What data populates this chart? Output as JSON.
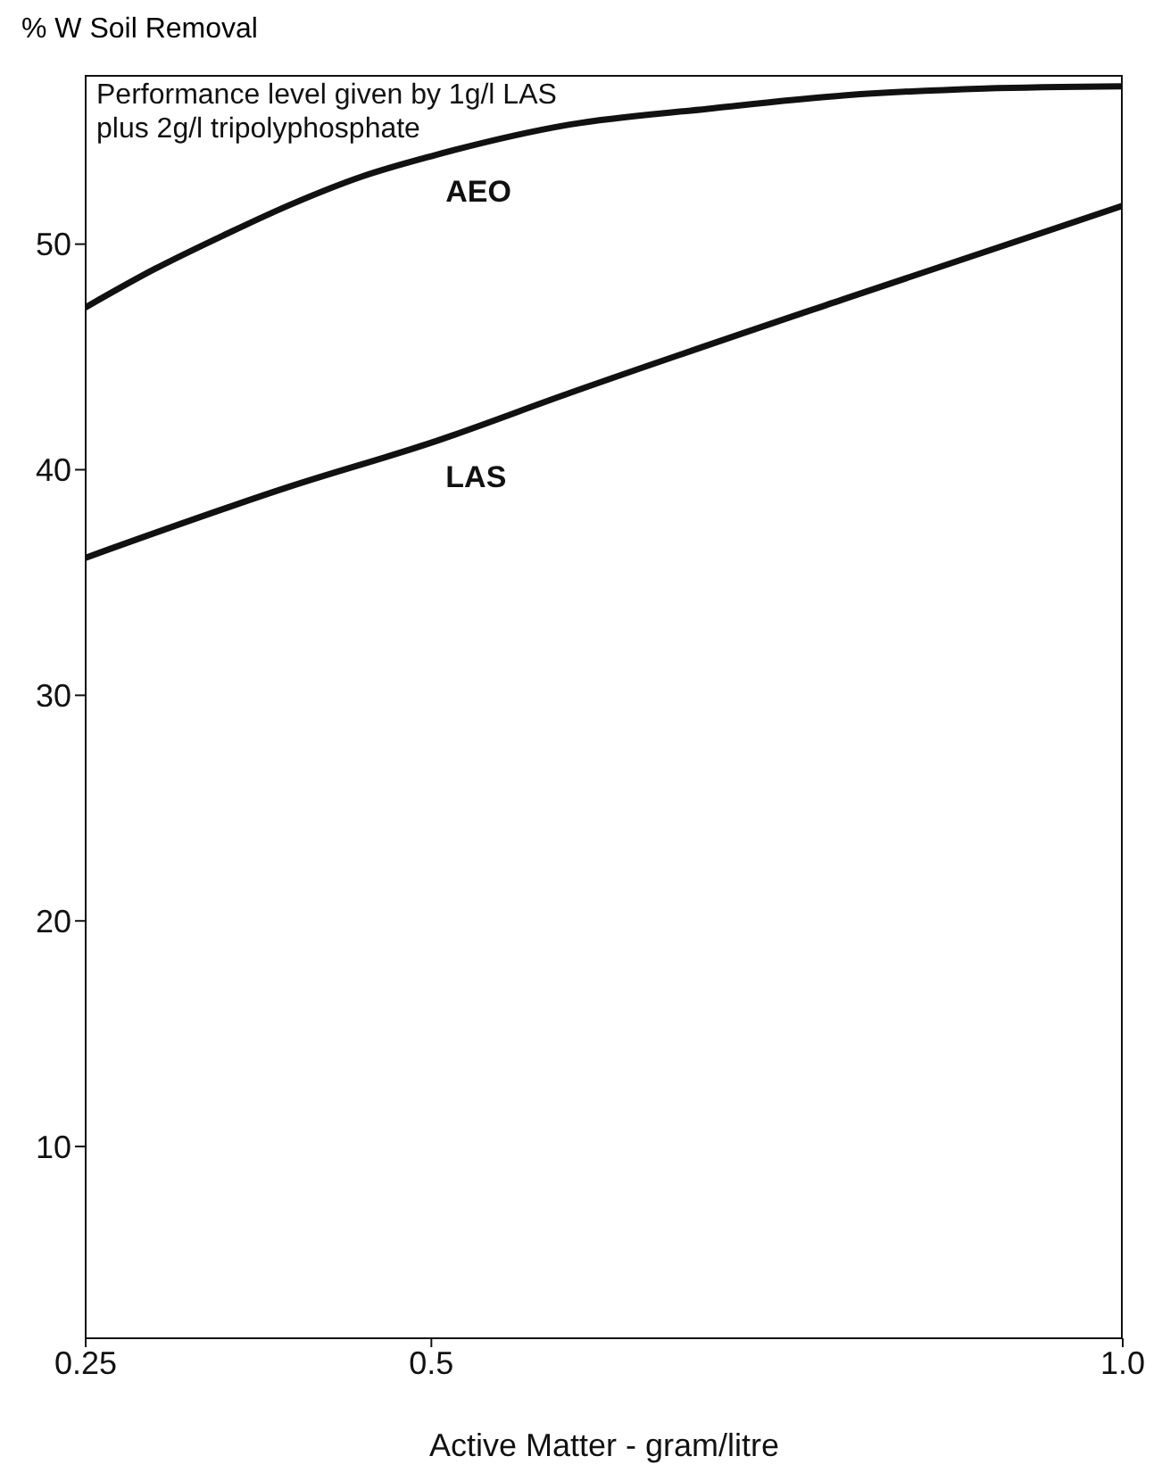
{
  "chart_data": {
    "type": "line",
    "ylabel": "% W Soil Removal",
    "xlabel": "Active Matter - gram/litre",
    "annotations": [
      "Performance level given by 1g/l LAS\nplus 2g/l tripolyphosphate"
    ],
    "series": [
      {
        "name": "AEO",
        "color": "#111111",
        "x": [
          0.25,
          0.3,
          0.35,
          0.4,
          0.45,
          0.5,
          0.6,
          0.7,
          0.8,
          0.9,
          1.0
        ],
        "values": [
          47.2,
          48.9,
          50.4,
          51.8,
          53.0,
          53.9,
          55.3,
          56.0,
          56.6,
          56.9,
          57.0
        ]
      },
      {
        "name": "LAS",
        "color": "#111111",
        "x": [
          0.25,
          0.4,
          0.5,
          0.6,
          0.8,
          1.0
        ],
        "values": [
          36.1,
          39.3,
          41.2,
          43.4,
          47.6,
          51.7
        ]
      }
    ],
    "xlim": [
      0.25,
      1.0
    ],
    "xticks": [
      0.25,
      0.5,
      {
        "value": 1.0,
        "label": "1.0"
      }
    ],
    "ylim": [
      1.5,
      57.5
    ],
    "yticks": [
      10,
      20,
      30,
      40,
      50
    ],
    "grid": false,
    "legend": false,
    "marker": "none",
    "line_style": "solid"
  }
}
